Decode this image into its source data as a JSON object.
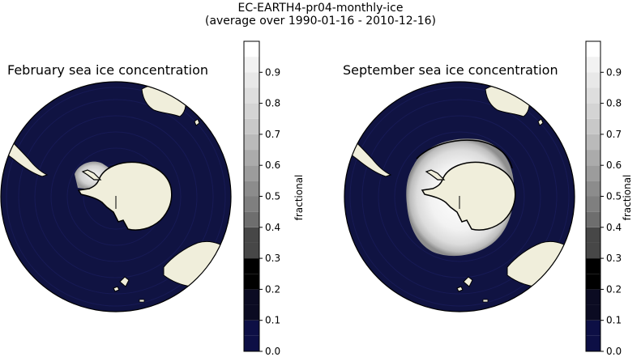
{
  "figure": {
    "title_line1": "EC-EARTH4-pr04-monthly-ice",
    "title_line2": "(average over 1990-01-16 - 2010-12-16)"
  },
  "panels": [
    {
      "title": "February sea ice concentration",
      "colorbar_label": "fractional",
      "ice_extent": "small"
    },
    {
      "title": "September sea ice concentration",
      "colorbar_label": "fractional",
      "ice_extent": "large"
    }
  ],
  "colorbar": {
    "ticks": [
      "0.0",
      "0.1",
      "0.2",
      "0.3",
      "0.4",
      "0.5",
      "0.6",
      "0.7",
      "0.8",
      "0.9"
    ],
    "levels": [
      0.0,
      0.05,
      0.1,
      0.15,
      0.2,
      0.25,
      0.3,
      0.35,
      0.4,
      0.45,
      0.5,
      0.55,
      0.6,
      0.65,
      0.7,
      0.75,
      0.8,
      0.85,
      0.9,
      0.95
    ],
    "colors": [
      "#0d0f45",
      "#0d0f45",
      "#0b0b22",
      "#0b0b22",
      "#000000",
      "#000000",
      "#474747",
      "#474747",
      "#6e6e6e",
      "#7f7f7f",
      "#8c8c8c",
      "#9c9c9c",
      "#ababab",
      "#bababa",
      "#c8c8c8",
      "#d4d4d4",
      "#dedede",
      "#e8e8e8",
      "#f2f2f2",
      "#ffffff"
    ],
    "ocean_color": "#101342",
    "land_color": "#f0eedb"
  }
}
